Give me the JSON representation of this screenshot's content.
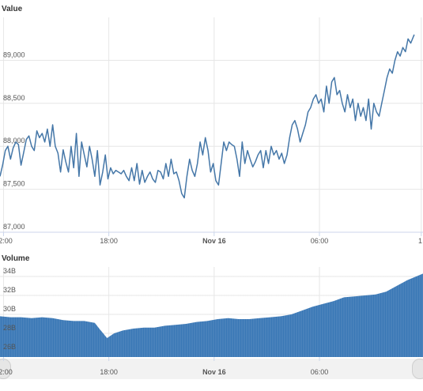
{
  "chart_data": [
    {
      "type": "line",
      "title": "Value",
      "ylim": [
        87000,
        89500
      ],
      "yticks": [
        {
          "value": 87000,
          "label": "87,000"
        },
        {
          "value": 87500,
          "label": "87,500"
        },
        {
          "value": 88000,
          "label": "88,000"
        },
        {
          "value": 88500,
          "label": "88,500"
        },
        {
          "value": 89000,
          "label": "89,000"
        }
      ],
      "xlim": [
        11.8,
        35.9
      ],
      "xticks": [
        {
          "value": 12,
          "label": "12:00"
        },
        {
          "value": 18,
          "label": "18:00"
        },
        {
          "value": 24,
          "label": "Nov 16",
          "bold": true
        },
        {
          "value": 30,
          "label": "06:00"
        },
        {
          "value": 35.8,
          "label": "1"
        }
      ],
      "grid": true,
      "color": "#4577a8",
      "series": [
        {
          "values": [
            [
              11.8,
              87650
            ],
            [
              11.95,
              87780
            ],
            [
              12.1,
              87950
            ],
            [
              12.25,
              88000
            ],
            [
              12.4,
              87850
            ],
            [
              12.55,
              87980
            ],
            [
              12.7,
              88050
            ],
            [
              12.85,
              88020
            ],
            [
              13.0,
              87780
            ],
            [
              13.15,
              87930
            ],
            [
              13.3,
              88080
            ],
            [
              13.45,
              88120
            ],
            [
              13.6,
              88000
            ],
            [
              13.75,
              87950
            ],
            [
              13.9,
              88180
            ],
            [
              14.05,
              88100
            ],
            [
              14.2,
              88150
            ],
            [
              14.35,
              88050
            ],
            [
              14.5,
              88200
            ],
            [
              14.65,
              88000
            ],
            [
              14.8,
              88250
            ],
            [
              14.95,
              88000
            ],
            [
              15.1,
              87920
            ],
            [
              15.25,
              87700
            ],
            [
              15.4,
              87960
            ],
            [
              15.55,
              87820
            ],
            [
              15.7,
              87700
            ],
            [
              15.85,
              88000
            ],
            [
              16.0,
              87750
            ],
            [
              16.15,
              88150
            ],
            [
              16.3,
              87650
            ],
            [
              16.45,
              88050
            ],
            [
              16.6,
              87900
            ],
            [
              16.75,
              87760
            ],
            [
              16.9,
              88000
            ],
            [
              17.05,
              87850
            ],
            [
              17.2,
              87650
            ],
            [
              17.35,
              87950
            ],
            [
              17.5,
              87550
            ],
            [
              17.65,
              87700
            ],
            [
              17.8,
              87900
            ],
            [
              17.95,
              87620
            ],
            [
              18.1,
              87750
            ],
            [
              18.25,
              87680
            ],
            [
              18.4,
              87720
            ],
            [
              18.55,
              87700
            ],
            [
              18.7,
              87680
            ],
            [
              18.85,
              87720
            ],
            [
              19.0,
              87650
            ],
            [
              19.15,
              87600
            ],
            [
              19.3,
              87750
            ],
            [
              19.45,
              87600
            ],
            [
              19.6,
              87800
            ],
            [
              19.75,
              87560
            ],
            [
              19.9,
              87720
            ],
            [
              20.05,
              87580
            ],
            [
              20.2,
              87650
            ],
            [
              20.35,
              87700
            ],
            [
              20.5,
              87620
            ],
            [
              20.65,
              87580
            ],
            [
              20.8,
              87720
            ],
            [
              20.95,
              87700
            ],
            [
              21.1,
              87620
            ],
            [
              21.25,
              87800
            ],
            [
              21.4,
              87650
            ],
            [
              21.55,
              87850
            ],
            [
              21.7,
              87680
            ],
            [
              21.85,
              87700
            ],
            [
              22.0,
              87600
            ],
            [
              22.15,
              87450
            ],
            [
              22.3,
              87400
            ],
            [
              22.45,
              87650
            ],
            [
              22.6,
              87850
            ],
            [
              22.75,
              87720
            ],
            [
              22.9,
              87650
            ],
            [
              23.05,
              87800
            ],
            [
              23.2,
              88050
            ],
            [
              23.35,
              87900
            ],
            [
              23.5,
              88100
            ],
            [
              23.65,
              87950
            ],
            [
              23.8,
              87700
            ],
            [
              23.95,
              87800
            ],
            [
              24.1,
              87600
            ],
            [
              24.25,
              87550
            ],
            [
              24.4,
              87800
            ],
            [
              24.55,
              88050
            ],
            [
              24.7,
              87950
            ],
            [
              24.85,
              88050
            ],
            [
              25.0,
              88020
            ],
            [
              25.15,
              88000
            ],
            [
              25.3,
              87850
            ],
            [
              25.45,
              87650
            ],
            [
              25.6,
              88050
            ],
            [
              25.75,
              87800
            ],
            [
              25.9,
              87950
            ],
            [
              26.05,
              87850
            ],
            [
              26.2,
              87760
            ],
            [
              26.35,
              87820
            ],
            [
              26.5,
              87900
            ],
            [
              26.65,
              87950
            ],
            [
              26.8,
              87750
            ],
            [
              26.95,
              87950
            ],
            [
              27.1,
              87800
            ],
            [
              27.25,
              88000
            ],
            [
              27.4,
              87900
            ],
            [
              27.55,
              87950
            ],
            [
              27.7,
              87850
            ],
            [
              27.85,
              87920
            ],
            [
              28.0,
              87800
            ],
            [
              28.15,
              87900
            ],
            [
              28.3,
              88100
            ],
            [
              28.45,
              88250
            ],
            [
              28.6,
              88300
            ],
            [
              28.75,
              88200
            ],
            [
              28.9,
              88050
            ],
            [
              29.05,
              88150
            ],
            [
              29.2,
              88250
            ],
            [
              29.35,
              88400
            ],
            [
              29.5,
              88450
            ],
            [
              29.65,
              88550
            ],
            [
              29.8,
              88600
            ],
            [
              29.95,
              88500
            ],
            [
              30.1,
              88550
            ],
            [
              30.25,
              88400
            ],
            [
              30.4,
              88700
            ],
            [
              30.55,
              88500
            ],
            [
              30.7,
              88750
            ],
            [
              30.85,
              88800
            ],
            [
              31.0,
              88600
            ],
            [
              31.15,
              88650
            ],
            [
              31.3,
              88500
            ],
            [
              31.45,
              88400
            ],
            [
              31.6,
              88600
            ],
            [
              31.75,
              88450
            ],
            [
              31.9,
              88550
            ],
            [
              32.05,
              88300
            ],
            [
              32.2,
              88500
            ],
            [
              32.35,
              88350
            ],
            [
              32.5,
              88450
            ],
            [
              32.65,
              88300
            ],
            [
              32.8,
              88550
            ],
            [
              32.95,
              88200
            ],
            [
              33.1,
              88500
            ],
            [
              33.25,
              88400
            ],
            [
              33.4,
              88350
            ],
            [
              33.55,
              88500
            ],
            [
              33.7,
              88650
            ],
            [
              33.85,
              88800
            ],
            [
              34.0,
              88900
            ],
            [
              34.15,
              88850
            ],
            [
              34.3,
              89000
            ],
            [
              34.45,
              89100
            ],
            [
              34.6,
              89050
            ],
            [
              34.75,
              89150
            ],
            [
              34.9,
              89100
            ],
            [
              35.05,
              89250
            ],
            [
              35.2,
              89200
            ],
            [
              35.4,
              89300
            ]
          ]
        }
      ]
    },
    {
      "type": "area",
      "title": "Volume",
      "ylim": [
        25.5,
        35
      ],
      "yticks": [
        {
          "value": 26,
          "label": "26B"
        },
        {
          "value": 28,
          "label": "28B"
        },
        {
          "value": 30,
          "label": "30B"
        },
        {
          "value": 32,
          "label": "32B"
        },
        {
          "value": 34,
          "label": "34B"
        }
      ],
      "xlim": [
        11.8,
        35.9
      ],
      "xticks": [
        {
          "value": 12,
          "label": "12:00"
        },
        {
          "value": 18,
          "label": "18:00"
        },
        {
          "value": 24,
          "label": "Nov 16",
          "bold": true
        },
        {
          "value": 30,
          "label": "06:00"
        }
      ],
      "grid": true,
      "color": "#3a78b6",
      "series": [
        {
          "values": [
            [
              11.8,
              29.8
            ],
            [
              12.4,
              29.7
            ],
            [
              13.0,
              29.7
            ],
            [
              13.6,
              29.6
            ],
            [
              14.2,
              29.7
            ],
            [
              14.8,
              29.6
            ],
            [
              15.4,
              29.4
            ],
            [
              16.0,
              29.3
            ],
            [
              16.6,
              29.3
            ],
            [
              17.2,
              29.1
            ],
            [
              17.5,
              28.4
            ],
            [
              17.9,
              27.5
            ],
            [
              18.3,
              28.0
            ],
            [
              18.8,
              28.3
            ],
            [
              19.4,
              28.5
            ],
            [
              20.0,
              28.6
            ],
            [
              20.6,
              28.6
            ],
            [
              21.2,
              28.8
            ],
            [
              21.8,
              28.9
            ],
            [
              22.4,
              29.0
            ],
            [
              23.0,
              29.2
            ],
            [
              23.6,
              29.3
            ],
            [
              24.2,
              29.5
            ],
            [
              24.8,
              29.6
            ],
            [
              25.4,
              29.5
            ],
            [
              26.0,
              29.5
            ],
            [
              26.6,
              29.6
            ],
            [
              27.2,
              29.7
            ],
            [
              27.8,
              29.8
            ],
            [
              28.4,
              30.0
            ],
            [
              29.0,
              30.4
            ],
            [
              29.6,
              30.8
            ],
            [
              30.2,
              31.1
            ],
            [
              30.8,
              31.4
            ],
            [
              31.4,
              31.8
            ],
            [
              32.0,
              31.9
            ],
            [
              32.6,
              32.0
            ],
            [
              33.2,
              32.1
            ],
            [
              33.8,
              32.4
            ],
            [
              34.4,
              33.0
            ],
            [
              35.0,
              33.6
            ],
            [
              35.9,
              34.3
            ]
          ]
        }
      ]
    }
  ]
}
